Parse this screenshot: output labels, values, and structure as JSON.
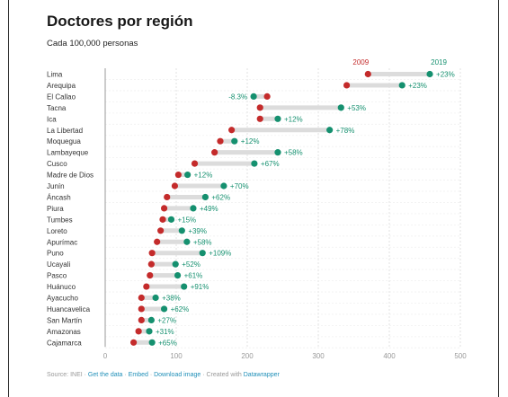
{
  "title": "Doctores por región",
  "subtitle": "Cada 100,000 personas",
  "chart_data": {
    "type": "dot-range",
    "title": "Doctores por región",
    "subtitle": "Cada 100,000 personas",
    "series": [
      {
        "name": "2009",
        "color": "#c42b2b"
      },
      {
        "name": "2019",
        "color": "#15906f"
      }
    ],
    "xlim": [
      0,
      500
    ],
    "xticks": [
      "0",
      "100",
      "200",
      "300",
      "400",
      "500"
    ],
    "grid": true,
    "rows": [
      {
        "region": "Lima",
        "v2009": 370,
        "v2019": 457,
        "change": "+23%"
      },
      {
        "region": "Arequipa",
        "v2009": 340,
        "v2019": 418,
        "change": "+23%"
      },
      {
        "region": "El Callao",
        "v2009": 228,
        "v2019": 209,
        "change": "-8.3%"
      },
      {
        "region": "Tacna",
        "v2009": 218,
        "v2019": 332,
        "change": "+53%"
      },
      {
        "region": "Ica",
        "v2009": 218,
        "v2019": 243,
        "change": "+12%"
      },
      {
        "region": "La Libertad",
        "v2009": 178,
        "v2019": 316,
        "change": "+78%"
      },
      {
        "region": "Moquegua",
        "v2009": 162,
        "v2019": 182,
        "change": "+12%"
      },
      {
        "region": "Lambayeque",
        "v2009": 154,
        "v2019": 243,
        "change": "+58%"
      },
      {
        "region": "Cusco",
        "v2009": 126,
        "v2019": 210,
        "change": "+67%"
      },
      {
        "region": "Madre de Dios",
        "v2009": 103,
        "v2019": 116,
        "change": "+12%"
      },
      {
        "region": "Junín",
        "v2009": 98,
        "v2019": 167,
        "change": "+70%"
      },
      {
        "region": "Áncash",
        "v2009": 87,
        "v2019": 141,
        "change": "+62%"
      },
      {
        "region": "Piura",
        "v2009": 83,
        "v2019": 124,
        "change": "+49%"
      },
      {
        "region": "Tumbes",
        "v2009": 81,
        "v2019": 93,
        "change": "+15%"
      },
      {
        "region": "Loreto",
        "v2009": 78,
        "v2019": 108,
        "change": "+39%"
      },
      {
        "region": "Apurímac",
        "v2009": 73,
        "v2019": 115,
        "change": "+58%"
      },
      {
        "region": "Puno",
        "v2009": 66,
        "v2019": 137,
        "change": "+109%"
      },
      {
        "region": "Ucayali",
        "v2009": 65,
        "v2019": 99,
        "change": "+52%"
      },
      {
        "region": "Pasco",
        "v2009": 63,
        "v2019": 102,
        "change": "+61%"
      },
      {
        "region": "Huánuco",
        "v2009": 58,
        "v2019": 111,
        "change": "+91%"
      },
      {
        "region": "Ayacucho",
        "v2009": 51,
        "v2019": 71,
        "change": "+38%"
      },
      {
        "region": "Huancavelica",
        "v2009": 51,
        "v2019": 83,
        "change": "+62%"
      },
      {
        "region": "San Martín",
        "v2009": 51,
        "v2019": 65,
        "change": "+27%"
      },
      {
        "region": "Amazonas",
        "v2009": 47,
        "v2019": 62,
        "change": "+31%"
      },
      {
        "region": "Cajamarca",
        "v2009": 40,
        "v2019": 66,
        "change": "+65%"
      }
    ]
  },
  "footer": {
    "source": "Source: INEI",
    "sep": " · ",
    "get_data": "Get the data",
    "embed": "Embed",
    "download": "Download image",
    "created": "Created with",
    "tool": "Datawrapper"
  }
}
